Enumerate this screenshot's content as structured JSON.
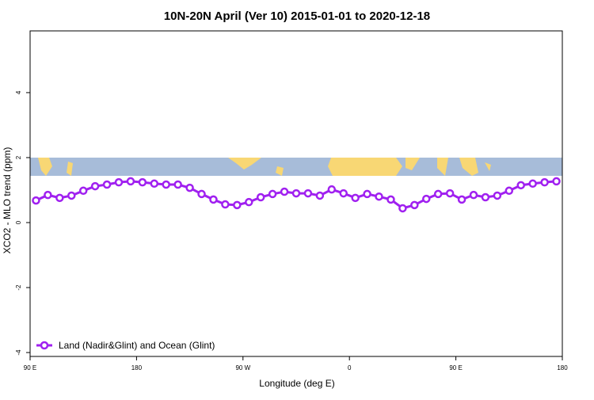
{
  "chart_data": {
    "type": "line",
    "title": "10N-20N April (Ver 10)   2015-01-01 to 2020-12-18",
    "x_label": "Longitude (deg E)",
    "y_label": "XCO2 - MLO trend (ppm)",
    "x": [
      95,
      105,
      115,
      125,
      135,
      145,
      155,
      165,
      175,
      185,
      195,
      205,
      215,
      225,
      235,
      245,
      255,
      265,
      275,
      285,
      295,
      305,
      315,
      325,
      335,
      345,
      355,
      365,
      375,
      385,
      395,
      405,
      415,
      425,
      435,
      445,
      455,
      465,
      475,
      485,
      495,
      505,
      515,
      525,
      535
    ],
    "series": [
      {
        "name": "Land (Nadir&Glint) and Ocean (Glint)",
        "color": "#a020f0",
        "values": [
          0.68,
          0.85,
          0.76,
          0.83,
          0.98,
          1.12,
          1.17,
          1.24,
          1.27,
          1.24,
          1.2,
          1.17,
          1.17,
          1.07,
          0.88,
          0.71,
          0.56,
          0.54,
          0.63,
          0.78,
          0.88,
          0.95,
          0.9,
          0.9,
          0.83,
          1.02,
          0.9,
          0.76,
          0.88,
          0.8,
          0.71,
          0.44,
          0.54,
          0.73,
          0.88,
          0.9,
          0.71,
          0.85,
          0.78,
          0.83,
          0.98,
          1.15,
          1.2,
          1.24,
          1.27
        ]
      }
    ],
    "xlim": [
      90,
      540
    ],
    "xticks": [
      {
        "value": 90,
        "label": "90 E"
      },
      180,
      {
        "value": 270,
        "label": "90 W"
      },
      {
        "value": 360,
        "label": "0"
      },
      {
        "value": 450,
        "label": "90 E"
      },
      {
        "value": 540,
        "label": "180"
      }
    ],
    "ylim": [
      -4.12,
      5.9
    ],
    "yticks": [
      -4,
      -2,
      0,
      2,
      4
    ],
    "legend": "bottom-left"
  }
}
